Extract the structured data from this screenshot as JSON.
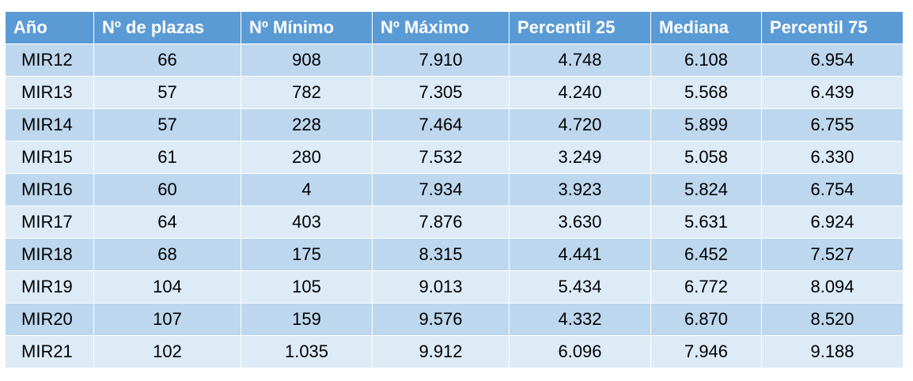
{
  "table": {
    "header": [
      "Año",
      "Nº de plazas",
      "Nº Mínimo",
      "Nº Máximo",
      "Percentil 25",
      "Mediana",
      "Percentil 75"
    ],
    "rows": [
      [
        "MIR12",
        "66",
        "908",
        "7.910",
        "4.748",
        "6.108",
        "6.954"
      ],
      [
        "MIR13",
        "57",
        "782",
        "7.305",
        "4.240",
        "5.568",
        "6.439"
      ],
      [
        "MIR14",
        "57",
        "228",
        "7.464",
        "4.720",
        "5.899",
        "6.755"
      ],
      [
        "MIR15",
        "61",
        "280",
        "7.532",
        "3.249",
        "5.058",
        "6.330"
      ],
      [
        "MIR16",
        "60",
        "4",
        "7.934",
        "3.923",
        "5.824",
        "6.754"
      ],
      [
        "MIR17",
        "64",
        "403",
        "7.876",
        "3.630",
        "5.631",
        "6.924"
      ],
      [
        "MIR18",
        "68",
        "175",
        "8.315",
        "4.441",
        "6.452",
        "7.527"
      ],
      [
        "MIR19",
        "104",
        "105",
        "9.013",
        "5.434",
        "6.772",
        "8.094"
      ],
      [
        "MIR20",
        "107",
        "159",
        "9.576",
        "4.332",
        "6.870",
        "8.520"
      ],
      [
        "MIR21",
        "102",
        "1.035",
        "9.912",
        "6.096",
        "7.946",
        "9.188"
      ]
    ]
  }
}
